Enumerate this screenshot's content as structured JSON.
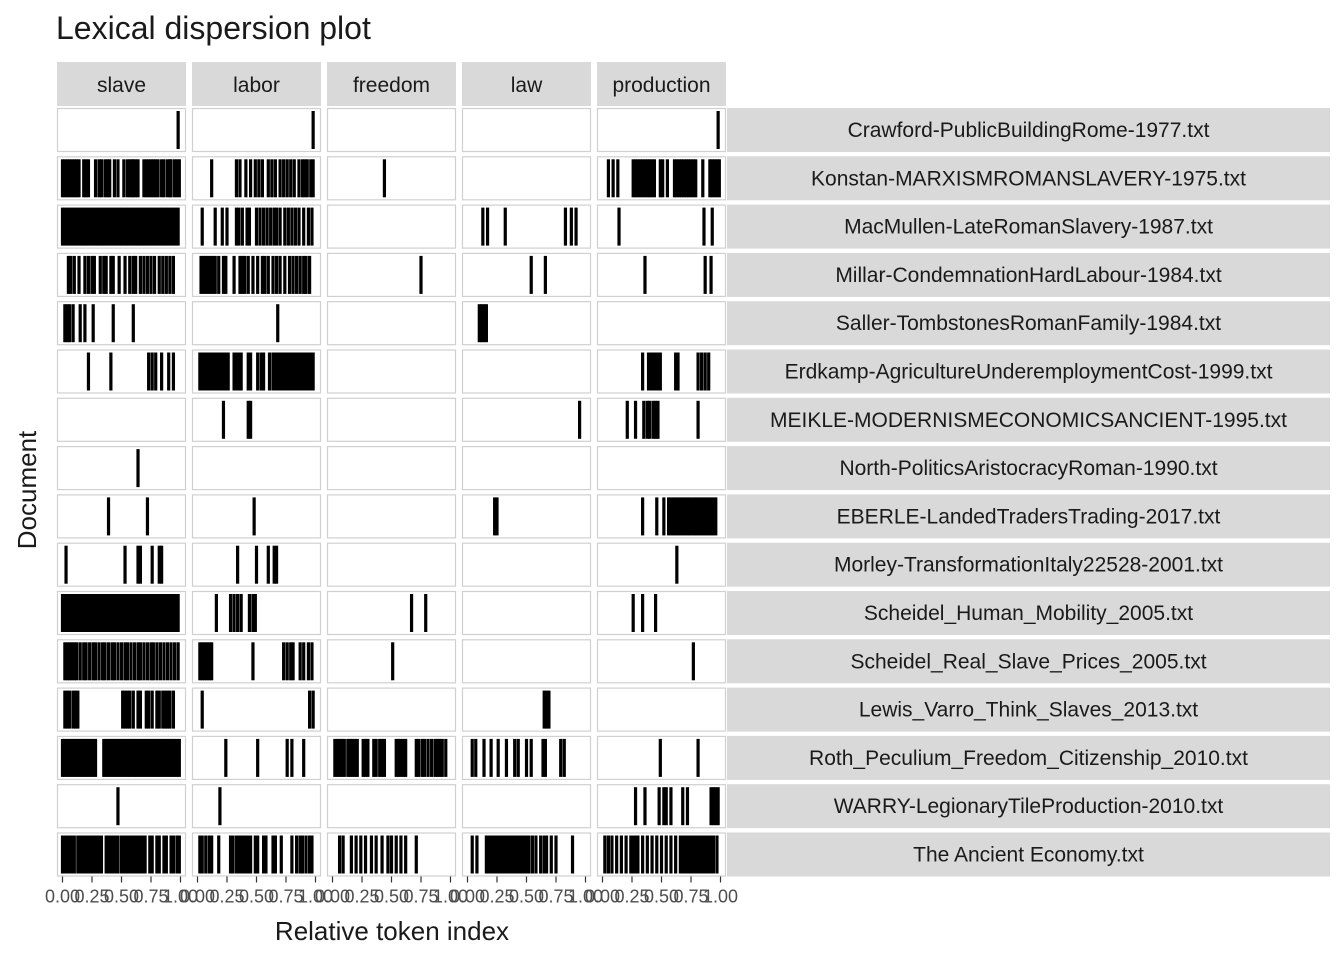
{
  "chart_data": {
    "type": "lexical-dispersion",
    "title": "Lexical dispersion plot",
    "xlabel": "Relative token index",
    "ylabel": "Document",
    "xlim": [
      0,
      1
    ],
    "x_tick_labels": [
      "0.00",
      "0.25",
      "0.50",
      "0.75",
      "1.00"
    ],
    "facet_columns": [
      "slave",
      "labor",
      "freedom",
      "law",
      "production"
    ],
    "documents": [
      "Crawford-PublicBuildingRome-1977.txt",
      "Konstan-MARXISMROMANSLAVERY-1975.txt",
      "MacMullen-LateRomanSlavery-1987.txt",
      "Millar-CondemnationHardLabour-1984.txt",
      "Saller-TombstonesRomanFamily-1984.txt",
      "Erdkamp-AgricultureUnderemploymentCost-1999.txt",
      "MEIKLE-MODERNISMECONOMICSANCIENT-1995.txt",
      "North-PoliticsAristocracyRoman-1990.txt",
      "EBERLE-LandedTradersTrading-2017.txt",
      "Morley-TransformationItaly22528-2001.txt",
      "Scheidel_Human_Mobility_2005.txt",
      "Scheidel_Real_Slave_Prices_2005.txt",
      "Lewis_Varro_Think_Slaves_2013.txt",
      "Roth_Peculium_Freedom_Citizenship_2010.txt",
      "WARRY-LegionaryTileProduction-2010.txt",
      "The Ancient Economy.txt"
    ],
    "occurrences": {
      "slave": [
        [
          0.98
        ],
        [
          0.0,
          0.02,
          0.04,
          0.06,
          0.08,
          0.1,
          0.12,
          0.14,
          0.18,
          0.2,
          0.22,
          0.28,
          0.31,
          0.33,
          0.36,
          0.38,
          0.4,
          0.44,
          0.47,
          0.52,
          0.55,
          0.57,
          0.59,
          0.6,
          0.62,
          0.64,
          0.69,
          0.71,
          0.73,
          0.75,
          0.77,
          0.79,
          0.81,
          0.84,
          0.86,
          0.89,
          0.91,
          0.92,
          0.95,
          0.97,
          0.99
        ],
        [
          0.0,
          0.02,
          0.04,
          0.06,
          0.08,
          0.1,
          0.12,
          0.14,
          0.16,
          0.18,
          0.2,
          0.22,
          0.24,
          0.26,
          0.28,
          0.3,
          0.32,
          0.34,
          0.36,
          0.38,
          0.4,
          0.42,
          0.44,
          0.46,
          0.48,
          0.5,
          0.52,
          0.54,
          0.56,
          0.58,
          0.6,
          0.62,
          0.64,
          0.66,
          0.68,
          0.7,
          0.72,
          0.74,
          0.76,
          0.78,
          0.8,
          0.82,
          0.84,
          0.86,
          0.88,
          0.9,
          0.92,
          0.94,
          0.96,
          0.98
        ],
        [
          0.05,
          0.07,
          0.1,
          0.14,
          0.19,
          0.22,
          0.25,
          0.27,
          0.32,
          0.35,
          0.37,
          0.41,
          0.43,
          0.48,
          0.53,
          0.57,
          0.6,
          0.62,
          0.66,
          0.69,
          0.72,
          0.75,
          0.78,
          0.82,
          0.85,
          0.88,
          0.91,
          0.94
        ],
        [
          0.02,
          0.04,
          0.06,
          0.09,
          0.15,
          0.19,
          0.26,
          0.43,
          0.6
        ],
        [
          0.22,
          0.41,
          0.73,
          0.76,
          0.79,
          0.84,
          0.9,
          0.94
        ],
        [],
        [
          0.64
        ],
        [
          0.39,
          0.72
        ],
        [
          0.03,
          0.53,
          0.64,
          0.66,
          0.76,
          0.82,
          0.84
        ],
        [
          0.0,
          0.02,
          0.04,
          0.06,
          0.08,
          0.1,
          0.12,
          0.14,
          0.16,
          0.18,
          0.2,
          0.22,
          0.24,
          0.26,
          0.28,
          0.3,
          0.32,
          0.34,
          0.36,
          0.38,
          0.4,
          0.42,
          0.44,
          0.46,
          0.48,
          0.5,
          0.52,
          0.54,
          0.56,
          0.58,
          0.6,
          0.62,
          0.64,
          0.66,
          0.68,
          0.7,
          0.72,
          0.74,
          0.76,
          0.78,
          0.8,
          0.82,
          0.84,
          0.86,
          0.88,
          0.9,
          0.92,
          0.94,
          0.96,
          0.98
        ],
        [
          0.02,
          0.04,
          0.06,
          0.08,
          0.1,
          0.12,
          0.15,
          0.18,
          0.2,
          0.23,
          0.26,
          0.28,
          0.31,
          0.34,
          0.36,
          0.39,
          0.42,
          0.44,
          0.47,
          0.5,
          0.53,
          0.55,
          0.58,
          0.61,
          0.64,
          0.66,
          0.69,
          0.72,
          0.75,
          0.77,
          0.8,
          0.83,
          0.86,
          0.89,
          0.92,
          0.95,
          0.98
        ],
        [
          0.02,
          0.04,
          0.06,
          0.09,
          0.11,
          0.13,
          0.51,
          0.53,
          0.55,
          0.57,
          0.6,
          0.64,
          0.66,
          0.71,
          0.73,
          0.76,
          0.8,
          0.82,
          0.85,
          0.87,
          0.89,
          0.91,
          0.94
        ],
        [
          0.0,
          0.02,
          0.04,
          0.06,
          0.08,
          0.1,
          0.12,
          0.14,
          0.16,
          0.18,
          0.2,
          0.22,
          0.24,
          0.26,
          0.28,
          0.35,
          0.37,
          0.39,
          0.41,
          0.43,
          0.45,
          0.47,
          0.49,
          0.51,
          0.53,
          0.55,
          0.57,
          0.59,
          0.61,
          0.63,
          0.65,
          0.67,
          0.69,
          0.71,
          0.73,
          0.75,
          0.77,
          0.79,
          0.81,
          0.83,
          0.85,
          0.87,
          0.89,
          0.91,
          0.93,
          0.95,
          0.97,
          0.99
        ],
        [
          0.47
        ],
        [
          0.0,
          0.02,
          0.04,
          0.06,
          0.08,
          0.1,
          0.13,
          0.15,
          0.17,
          0.19,
          0.21,
          0.23,
          0.25,
          0.27,
          0.29,
          0.31,
          0.33,
          0.37,
          0.39,
          0.41,
          0.43,
          0.45,
          0.47,
          0.5,
          0.52,
          0.54,
          0.56,
          0.58,
          0.6,
          0.62,
          0.64,
          0.66,
          0.68,
          0.7,
          0.74,
          0.76,
          0.8,
          0.82,
          0.86,
          0.88,
          0.92,
          0.94,
          0.97,
          0.99
        ]
      ],
      "labor": [
        [
          0.98
        ],
        [
          0.12,
          0.33,
          0.36,
          0.41,
          0.45,
          0.49,
          0.52,
          0.55,
          0.6,
          0.63,
          0.66,
          0.7,
          0.73,
          0.76,
          0.79,
          0.82,
          0.86,
          0.89,
          0.91,
          0.93,
          0.96,
          0.98
        ],
        [
          0.04,
          0.15,
          0.21,
          0.25,
          0.33,
          0.35,
          0.38,
          0.42,
          0.44,
          0.5,
          0.53,
          0.56,
          0.59,
          0.62,
          0.65,
          0.67,
          0.7,
          0.74,
          0.77,
          0.8,
          0.83,
          0.86,
          0.9,
          0.94,
          0.97
        ],
        [
          0.03,
          0.05,
          0.07,
          0.09,
          0.11,
          0.13,
          0.15,
          0.18,
          0.22,
          0.24,
          0.31,
          0.36,
          0.38,
          0.4,
          0.43,
          0.47,
          0.51,
          0.55,
          0.57,
          0.6,
          0.64,
          0.67,
          0.7,
          0.74,
          0.78,
          0.81,
          0.84,
          0.87,
          0.9,
          0.92,
          0.95
        ],
        [
          0.68
        ],
        [
          0.02,
          0.04,
          0.06,
          0.08,
          0.1,
          0.12,
          0.14,
          0.16,
          0.18,
          0.2,
          0.22,
          0.24,
          0.26,
          0.31,
          0.33,
          0.35,
          0.37,
          0.43,
          0.45,
          0.51,
          0.54,
          0.56,
          0.61,
          0.64,
          0.66,
          0.68,
          0.7,
          0.72,
          0.74,
          0.76,
          0.78,
          0.8,
          0.82,
          0.84,
          0.86,
          0.88,
          0.9,
          0.92,
          0.94,
          0.96,
          0.98
        ],
        [
          0.22,
          0.43,
          0.45
        ],
        [],
        [
          0.48
        ],
        [
          0.34,
          0.5,
          0.6,
          0.65,
          0.67
        ],
        [
          0.16,
          0.28,
          0.31,
          0.34,
          0.37,
          0.44,
          0.47,
          0.49
        ],
        [
          0.02,
          0.04,
          0.06,
          0.08,
          0.1,
          0.12,
          0.47,
          0.73,
          0.76,
          0.79,
          0.81,
          0.87,
          0.9,
          0.94,
          0.97
        ],
        [
          0.04,
          0.95,
          0.98
        ],
        [
          0.24,
          0.51,
          0.76,
          0.8,
          0.9
        ],
        [
          0.19
        ],
        [
          0.02,
          0.04,
          0.07,
          0.1,
          0.12,
          0.18,
          0.28,
          0.3,
          0.33,
          0.35,
          0.37,
          0.39,
          0.41,
          0.43,
          0.45,
          0.49,
          0.51,
          0.56,
          0.58,
          0.64,
          0.66,
          0.71,
          0.8,
          0.84,
          0.87,
          0.89,
          0.92,
          0.95,
          0.97
        ]
      ],
      "freedom": [
        [],
        [
          0.44
        ],
        [],
        [
          0.75
        ],
        [],
        [],
        [],
        [],
        [],
        [],
        [
          0.67,
          0.79
        ],
        [
          0.51
        ],
        [],
        [
          0.02,
          0.04,
          0.06,
          0.08,
          0.1,
          0.13,
          0.15,
          0.17,
          0.19,
          0.21,
          0.26,
          0.28,
          0.3,
          0.35,
          0.37,
          0.4,
          0.42,
          0.44,
          0.54,
          0.56,
          0.58,
          0.6,
          0.62,
          0.71,
          0.73,
          0.76,
          0.78,
          0.81,
          0.84,
          0.87,
          0.89,
          0.91,
          0.93,
          0.96
        ],
        [],
        [
          0.06,
          0.09,
          0.16,
          0.2,
          0.24,
          0.28,
          0.33,
          0.37,
          0.42,
          0.47,
          0.5,
          0.54,
          0.58,
          0.62,
          0.71
        ]
      ],
      "law": [
        [],
        [],
        [
          0.13,
          0.17,
          0.32,
          0.83,
          0.88,
          0.92
        ],
        [
          0.54,
          0.66
        ],
        [
          0.1,
          0.12,
          0.14,
          0.16
        ],
        [],
        [
          0.95
        ],
        [],
        [
          0.23,
          0.25
        ],
        [],
        [],
        [],
        [
          0.65,
          0.67,
          0.69
        ],
        [
          0.04,
          0.07,
          0.14,
          0.2,
          0.26,
          0.33,
          0.4,
          0.43,
          0.5,
          0.54,
          0.64,
          0.66,
          0.79,
          0.82
        ],
        [],
        [
          0.04,
          0.08,
          0.16,
          0.18,
          0.2,
          0.22,
          0.24,
          0.26,
          0.28,
          0.3,
          0.32,
          0.34,
          0.36,
          0.38,
          0.4,
          0.42,
          0.44,
          0.46,
          0.48,
          0.5,
          0.52,
          0.55,
          0.58,
          0.62,
          0.65,
          0.67,
          0.71,
          0.75,
          0.89
        ]
      ],
      "production": [
        [
          0.98
        ],
        [
          0.05,
          0.09,
          0.13,
          0.26,
          0.28,
          0.3,
          0.32,
          0.34,
          0.36,
          0.38,
          0.4,
          0.42,
          0.44,
          0.49,
          0.51,
          0.55,
          0.61,
          0.63,
          0.65,
          0.67,
          0.69,
          0.71,
          0.73,
          0.75,
          0.77,
          0.79,
          0.85,
          0.91,
          0.93,
          0.95,
          0.97,
          0.99
        ],
        [
          0.14,
          0.86,
          0.93
        ],
        [
          0.36,
          0.87,
          0.92
        ],
        [],
        [
          0.34,
          0.39,
          0.41,
          0.43,
          0.45,
          0.47,
          0.49,
          0.62,
          0.64,
          0.81,
          0.84,
          0.87,
          0.9
        ],
        [
          0.21,
          0.28,
          0.35,
          0.38,
          0.4,
          0.43,
          0.45,
          0.47,
          0.81
        ],
        [],
        [
          0.34,
          0.46,
          0.52,
          0.56,
          0.58,
          0.6,
          0.62,
          0.64,
          0.66,
          0.68,
          0.7,
          0.72,
          0.74,
          0.76,
          0.78,
          0.8,
          0.82,
          0.84,
          0.86,
          0.88,
          0.9,
          0.92,
          0.94,
          0.96
        ],
        [
          0.63
        ],
        [
          0.26,
          0.34,
          0.45
        ],
        [
          0.77
        ],
        [],
        [
          0.49,
          0.81
        ],
        [
          0.28,
          0.36,
          0.48,
          0.52,
          0.54,
          0.58,
          0.68,
          0.72,
          0.92,
          0.94,
          0.96,
          0.98
        ],
        [
          0.02,
          0.05,
          0.08,
          0.12,
          0.16,
          0.2,
          0.24,
          0.26,
          0.28,
          0.3,
          0.34,
          0.38,
          0.42,
          0.46,
          0.5,
          0.54,
          0.58,
          0.62,
          0.66,
          0.68,
          0.7,
          0.72,
          0.74,
          0.76,
          0.78,
          0.8,
          0.82,
          0.84,
          0.86,
          0.88,
          0.9,
          0.92,
          0.94,
          0.97
        ]
      ]
    }
  }
}
